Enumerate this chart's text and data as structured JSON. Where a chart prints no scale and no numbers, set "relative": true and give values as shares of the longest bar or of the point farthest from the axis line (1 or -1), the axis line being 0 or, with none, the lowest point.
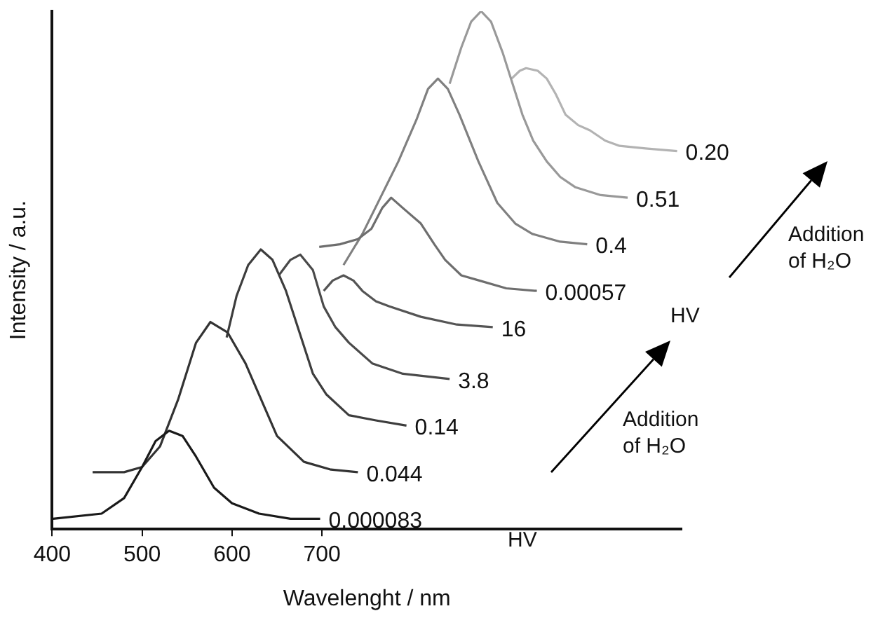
{
  "chart_data": {
    "type": "line",
    "relative": true,
    "xlabel": "Wavelenght / nm",
    "ylabel": "Intensity / a.u.",
    "xlim": [
      400,
      1100
    ],
    "xticks": [
      400,
      500,
      600,
      700
    ],
    "grid": false,
    "legend": false,
    "marker": "none",
    "line_style": "solid",
    "annotations": [
      "HV",
      "Addition of H₂O",
      "HV",
      "Addition of H₂O"
    ],
    "series": [
      {
        "name": "0.000083",
        "color": "#1a1a1a",
        "x": [
          401,
          455,
          480,
          500,
          515,
          530,
          545,
          560,
          580,
          600,
          630,
          665,
          698
        ],
        "values": [
          0.02,
          0.03,
          0.06,
          0.12,
          0.17,
          0.19,
          0.18,
          0.14,
          0.08,
          0.05,
          0.03,
          0.02,
          0.02
        ]
      },
      {
        "name": "0.044",
        "color": "#333333",
        "x": [
          445,
          480,
          500,
          520,
          540,
          560,
          576,
          595,
          615,
          635,
          650,
          680,
          710,
          740
        ],
        "values": [
          0.11,
          0.11,
          0.12,
          0.16,
          0.25,
          0.36,
          0.4,
          0.38,
          0.32,
          0.24,
          0.18,
          0.13,
          0.115,
          0.11
        ]
      },
      {
        "name": "0.14",
        "color": "#3d3d3d",
        "x": [
          594,
          605,
          618,
          632,
          645,
          660,
          675,
          690,
          705,
          730,
          760,
          794
        ],
        "values": [
          0.37,
          0.45,
          0.51,
          0.54,
          0.52,
          0.46,
          0.38,
          0.3,
          0.26,
          0.22,
          0.21,
          0.2
        ]
      },
      {
        "name": "3.8",
        "color": "#4a4a4a",
        "x": [
          652,
          665,
          676,
          690,
          702,
          715,
          730,
          756,
          790,
          842
        ],
        "values": [
          0.49,
          0.52,
          0.53,
          0.5,
          0.43,
          0.39,
          0.36,
          0.32,
          0.3,
          0.29
        ]
      },
      {
        "name": "16",
        "color": "#555555",
        "x": [
          702,
          712,
          724,
          735,
          745,
          760,
          775,
          810,
          850,
          890
        ],
        "values": [
          0.46,
          0.48,
          0.49,
          0.48,
          0.46,
          0.44,
          0.43,
          0.41,
          0.395,
          0.39
        ]
      },
      {
        "name": "0.00057",
        "color": "#6e6e6e",
        "x": [
          697,
          720,
          740,
          755,
          767,
          777,
          790,
          810,
          825,
          837,
          855,
          875,
          905,
          939
        ],
        "values": [
          0.545,
          0.55,
          0.56,
          0.58,
          0.62,
          0.64,
          0.62,
          0.59,
          0.55,
          0.52,
          0.49,
          0.48,
          0.465,
          0.46
        ]
      },
      {
        "name": "0.4",
        "color": "#808080",
        "x": [
          724,
          745,
          765,
          785,
          805,
          818,
          829,
          840,
          853,
          874,
          895,
          915,
          934,
          965,
          995
        ],
        "values": [
          0.51,
          0.57,
          0.64,
          0.71,
          0.79,
          0.85,
          0.87,
          0.85,
          0.8,
          0.71,
          0.63,
          0.59,
          0.57,
          0.555,
          0.55
        ]
      },
      {
        "name": "0.51",
        "color": "#999999",
        "x": [
          842,
          855,
          866,
          877,
          888,
          901,
          912,
          923,
          935,
          950,
          965,
          982,
          1010,
          1040
        ],
        "values": [
          0.86,
          0.93,
          0.98,
          1.0,
          0.98,
          0.92,
          0.86,
          0.8,
          0.75,
          0.71,
          0.68,
          0.66,
          0.645,
          0.64
        ]
      },
      {
        "name": "0.20",
        "color": "#b3b3b3",
        "x": [
          911,
          920,
          927,
          940,
          950,
          960,
          971,
          985,
          998,
          1015,
          1031,
          1060,
          1095
        ],
        "values": [
          0.87,
          0.885,
          0.89,
          0.885,
          0.87,
          0.84,
          0.8,
          0.78,
          0.77,
          0.75,
          0.74,
          0.735,
          0.73
        ]
      }
    ]
  }
}
